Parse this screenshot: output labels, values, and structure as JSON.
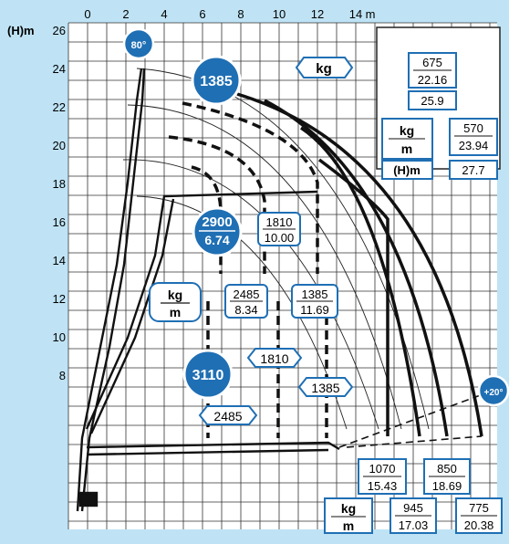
{
  "axes": {
    "x_unit": "m",
    "y_unit": "(H)m",
    "x_ticks": [
      "0",
      "2",
      "4",
      "6",
      "8",
      "10",
      "12",
      "14"
    ],
    "y_ticks": [
      "26",
      "24",
      "22",
      "20",
      "18",
      "16",
      "14",
      "12",
      "10",
      "8"
    ]
  },
  "badges": {
    "angle_max": "80°",
    "angle_min": "+20°",
    "max_load": "1385",
    "load_2900": "2900",
    "reach_674": "6.74",
    "load_3110": "3110"
  },
  "tags": {
    "kg_top": "kg",
    "t1810": "1810",
    "t1385": "1385",
    "t2485": "2485"
  },
  "load_boxes": {
    "b1810": {
      "kg": "1810",
      "m": "10.00"
    },
    "b2485": {
      "kg": "2485",
      "m": "8.34"
    },
    "b1385": {
      "kg": "1385",
      "m": "11.69"
    },
    "b1070": {
      "kg": "1070",
      "m": "15.43"
    },
    "b850": {
      "kg": "850",
      "m": "18.69"
    },
    "b945": {
      "kg": "945",
      "m": "17.03"
    },
    "b775": {
      "kg": "775",
      "m": "20.38"
    }
  },
  "legend_units": {
    "kg": "kg",
    "m": "m"
  },
  "jib_panel": {
    "v675": "675",
    "v2216": "22.16",
    "v259": "25.9",
    "kg": "kg",
    "m": "m",
    "v570": "570",
    "v2394": "23.94",
    "h": "(H)m",
    "v277": "27.7"
  },
  "colors": {
    "background": "#bfe3f5",
    "badge": "#1f6fb4",
    "grid": "#333333"
  }
}
